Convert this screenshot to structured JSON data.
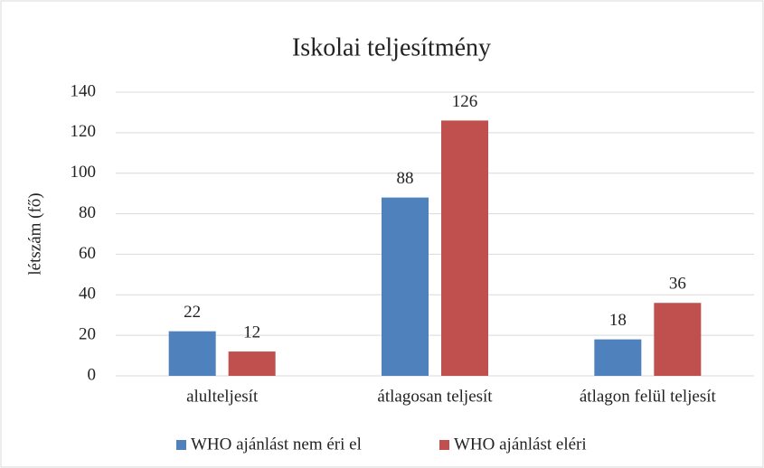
{
  "chart_data": {
    "type": "bar",
    "title": "Iskolai teljesítmény",
    "ylabel": "létszám (fő)",
    "categories": [
      "alulteljesít",
      "átlagosan teljesít",
      "átlagon felül teljesít"
    ],
    "series": [
      {
        "name": "WHO ajánlást nem éri el",
        "color": "#4f81bd",
        "values": [
          22,
          88,
          18
        ]
      },
      {
        "name": "WHO ajánlást eléri",
        "color": "#c0504d",
        "values": [
          12,
          126,
          36
        ]
      }
    ],
    "ylim": [
      0,
      140
    ],
    "yticks": [
      0,
      20,
      40,
      60,
      80,
      100,
      120,
      140
    ],
    "grid": true,
    "legend": "bottom"
  }
}
